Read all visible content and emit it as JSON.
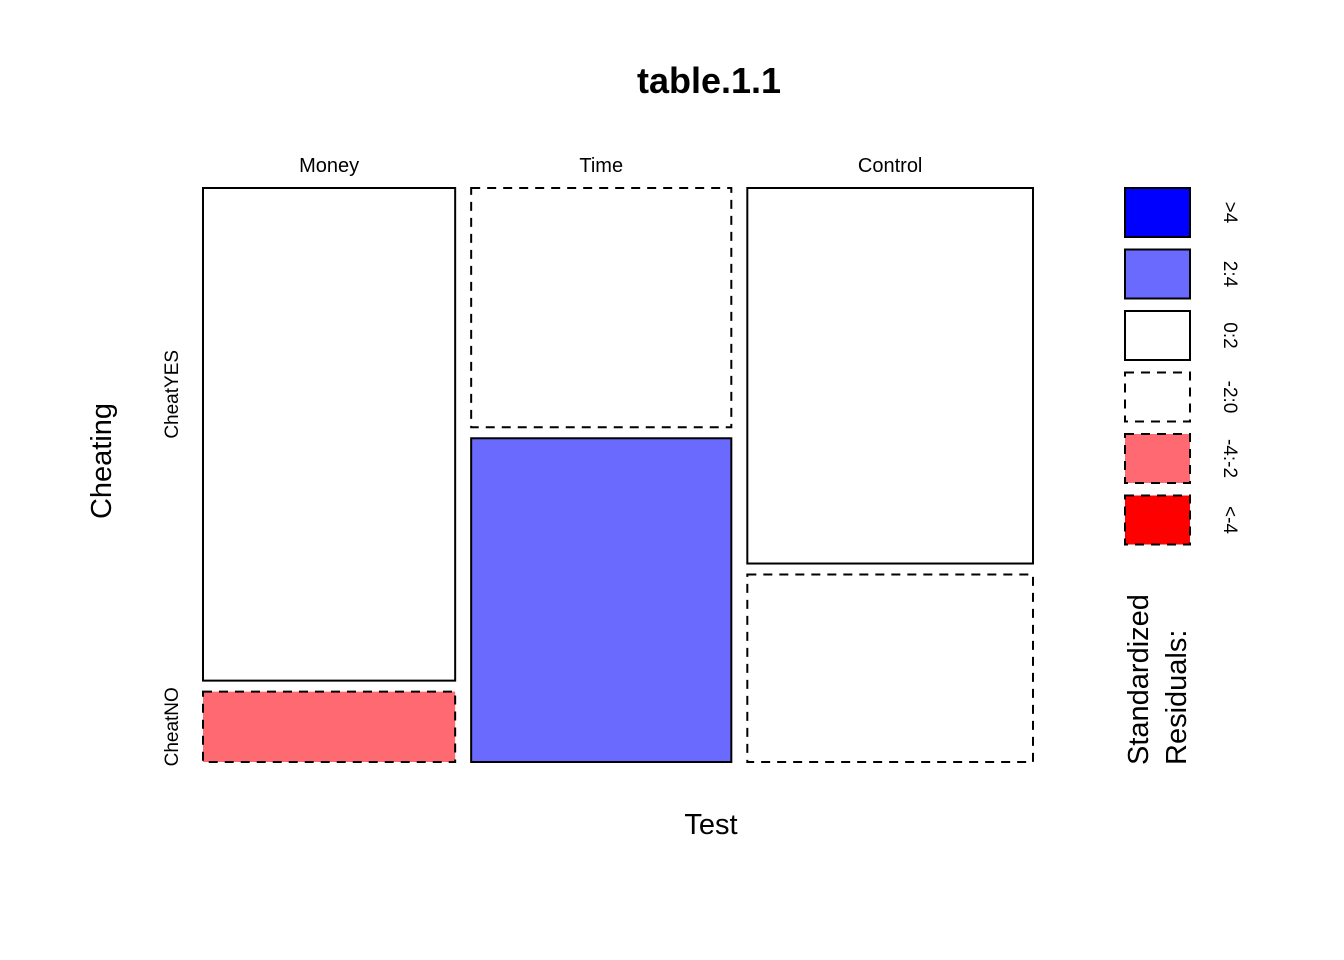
{
  "chart_data": {
    "type": "mosaic",
    "title": "table.1.1",
    "xlabel": "Test",
    "ylabel": "Cheating",
    "columns": [
      "Money",
      "Time",
      "Control"
    ],
    "rows": [
      "CheatYES",
      "CheatNO"
    ],
    "column_proportions": [
      0.316,
      0.326,
      0.358
    ],
    "row_proportions": {
      "Money": [
        0.875,
        0.125
      ],
      "Time": [
        0.425,
        0.575
      ],
      "Control": [
        0.667,
        0.333
      ]
    },
    "residual_class": {
      "Money": [
        "0:2",
        "-4:-2"
      ],
      "Time": [
        "-2:0",
        "2:4"
      ],
      "Control": [
        "0:2",
        "-2:0"
      ]
    },
    "legend": {
      "title": "Standardized\nResiduals:",
      "items": [
        {
          "label": ">4",
          "color": "#0000ff",
          "dashed": false
        },
        {
          "label": "2:4",
          "color": "#6a6aff",
          "dashed": false
        },
        {
          "label": "0:2",
          "color": "#ffffff",
          "dashed": false
        },
        {
          "label": "-2:0",
          "color": "#ffffff",
          "dashed": true
        },
        {
          "label": "-4:-2",
          "color": "#ff6a72",
          "dashed": true
        },
        {
          "label": "<-4",
          "color": "#ff0000",
          "dashed": true
        }
      ]
    }
  }
}
